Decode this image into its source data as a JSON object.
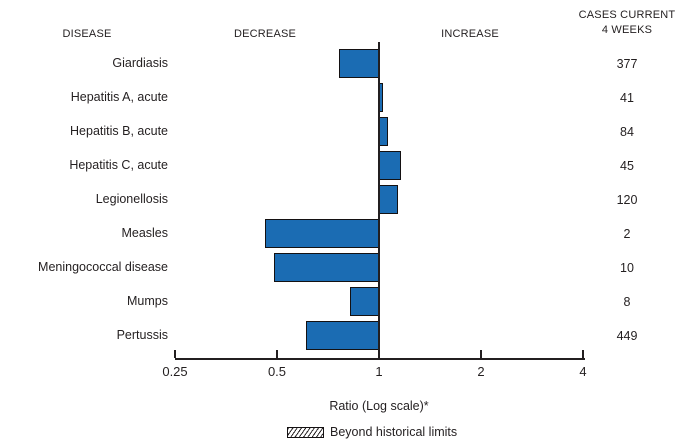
{
  "headers": {
    "disease": "DISEASE",
    "decrease": "DECREASE",
    "increase": "INCREASE",
    "cases_line1": "CASES CURRENT",
    "cases_line2": "4 WEEKS"
  },
  "colors": {
    "bar_fill": "#1b6cb3",
    "bar_border": "#141112",
    "axis": "#231f20",
    "text": "#231f20"
  },
  "chart_data": {
    "type": "bar",
    "orientation": "horizontal",
    "scale": "log",
    "baseline": 1,
    "xlabel": "Ratio (Log scale)*",
    "xlim": [
      0.25,
      4
    ],
    "x_ticks": [
      0.25,
      0.5,
      1,
      2,
      4
    ],
    "x_tick_labels": [
      "0.25",
      "0.5",
      "1",
      "2",
      "4"
    ],
    "rows": [
      {
        "disease": "Giardiasis",
        "ratio": 0.76,
        "cases": "377"
      },
      {
        "disease": "Hepatitis A, acute",
        "ratio": 1.03,
        "cases": "41"
      },
      {
        "disease": "Hepatitis B, acute",
        "ratio": 1.06,
        "cases": "84"
      },
      {
        "disease": "Hepatitis C, acute",
        "ratio": 1.16,
        "cases": "45"
      },
      {
        "disease": "Legionellosis",
        "ratio": 1.14,
        "cases": "120"
      },
      {
        "disease": "Measles",
        "ratio": 0.46,
        "cases": "2"
      },
      {
        "disease": "Meningococcal disease",
        "ratio": 0.49,
        "cases": "10"
      },
      {
        "disease": "Mumps",
        "ratio": 0.82,
        "cases": "8"
      },
      {
        "disease": "Pertussis",
        "ratio": 0.61,
        "cases": "449"
      }
    ],
    "legend": [
      {
        "label": "Beyond historical limits",
        "style": "hatched"
      }
    ]
  }
}
